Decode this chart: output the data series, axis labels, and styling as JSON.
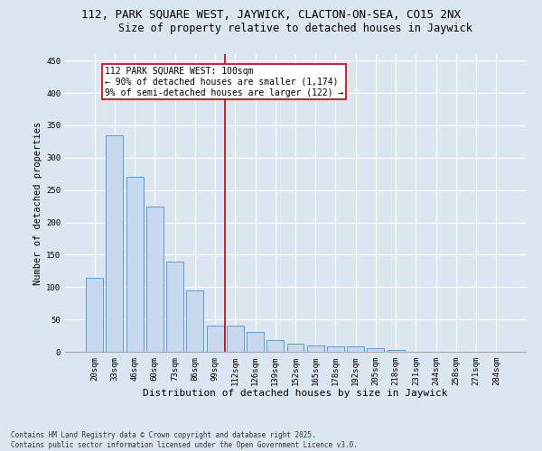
{
  "title1": "112, PARK SQUARE WEST, JAYWICK, CLACTON-ON-SEA, CO15 2NX",
  "title2": "Size of property relative to detached houses in Jaywick",
  "xlabel": "Distribution of detached houses by size in Jaywick",
  "ylabel": "Number of detached properties",
  "categories": [
    "20sqm",
    "33sqm",
    "46sqm",
    "60sqm",
    "73sqm",
    "86sqm",
    "99sqm",
    "112sqm",
    "126sqm",
    "139sqm",
    "152sqm",
    "165sqm",
    "178sqm",
    "192sqm",
    "205sqm",
    "218sqm",
    "231sqm",
    "244sqm",
    "258sqm",
    "271sqm",
    "284sqm"
  ],
  "values": [
    115,
    335,
    270,
    225,
    140,
    95,
    40,
    40,
    30,
    18,
    13,
    10,
    8,
    8,
    5,
    3,
    0,
    0,
    0,
    0,
    0
  ],
  "bar_color": "#c8d9ef",
  "bar_edge_color": "#5b9bd5",
  "vline_color": "#cc0000",
  "annotation_box_edge": "#cc0000",
  "background_color": "#dce6f0",
  "plot_bg_color": "#dce6f0",
  "ylim": [
    0,
    460
  ],
  "yticks": [
    0,
    50,
    100,
    150,
    200,
    250,
    300,
    350,
    400,
    450
  ],
  "highlight_label": "112 PARK SQUARE WEST: 100sqm",
  "highlight_line1": "← 90% of detached houses are smaller (1,174)",
  "highlight_line2": "9% of semi-detached houses are larger (122) →",
  "footer1": "Contains HM Land Registry data © Crown copyright and database right 2025.",
  "footer2": "Contains public sector information licensed under the Open Government Licence v3.0.",
  "title1_fontsize": 9,
  "title2_fontsize": 8.5,
  "xlabel_fontsize": 8,
  "ylabel_fontsize": 7.5,
  "tick_fontsize": 6.5,
  "annotation_fontsize": 7,
  "footer_fontsize": 5.5
}
